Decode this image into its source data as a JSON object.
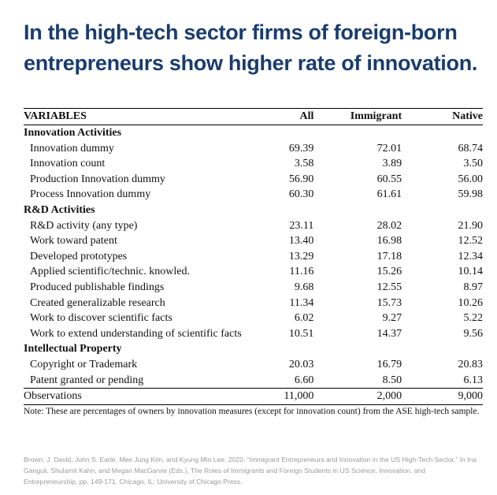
{
  "title": {
    "line1": "In the high-tech sector firms of foreign-born",
    "line2": "entrepreneurs show higher rate of innovation."
  },
  "table": {
    "headers": {
      "variables": "VARIABLES",
      "all": "All",
      "immigrant": "Immigrant",
      "native": "Native"
    },
    "sections": [
      {
        "label": "Innovation Activities",
        "rows": [
          {
            "label": "Innovation dummy",
            "all": "69.39",
            "immigrant": "72.01",
            "native": "68.74"
          },
          {
            "label": "Innovation count",
            "all": "3.58",
            "immigrant": "3.89",
            "native": "3.50"
          },
          {
            "label": "Production Innovation dummy",
            "all": "56.90",
            "immigrant": "60.55",
            "native": "56.00"
          },
          {
            "label": "Process Innovation dummy",
            "all": "60.30",
            "immigrant": "61.61",
            "native": "59.98"
          }
        ]
      },
      {
        "label": "R&D Activities",
        "rows": [
          {
            "label": "R&D activity (any type)",
            "all": "23.11",
            "immigrant": "28.02",
            "native": "21.90"
          },
          {
            "label": "Work toward patent",
            "all": "13.40",
            "immigrant": "16.98",
            "native": "12.52"
          },
          {
            "label": "Developed prototypes",
            "all": "13.29",
            "immigrant": "17.18",
            "native": "12.34"
          },
          {
            "label": "Applied scientific/technic. knowled.",
            "all": "11.16",
            "immigrant": "15.26",
            "native": "10.14"
          },
          {
            "label": "Produced publishable findings",
            "all": "9.68",
            "immigrant": "12.55",
            "native": "8.97"
          },
          {
            "label": "Created generalizable research",
            "all": "11.34",
            "immigrant": "15.73",
            "native": "10.26"
          },
          {
            "label": "Work to discover scientific facts",
            "all": "6.02",
            "immigrant": "9.27",
            "native": "5.22"
          },
          {
            "label": "Work to extend understanding of scientific facts",
            "all": "10.51",
            "immigrant": "14.37",
            "native": "9.56"
          }
        ]
      },
      {
        "label": "Intellectual Property",
        "rows": [
          {
            "label": "Copyright or Trademark",
            "all": "20.03",
            "immigrant": "16.79",
            "native": "20.83"
          },
          {
            "label": "Patent granted or pending",
            "all": "6.60",
            "immigrant": "8.50",
            "native": "6.13"
          }
        ]
      }
    ],
    "observations": {
      "label": "Observations",
      "all": "11,000",
      "immigrant": "2,000",
      "native": "9,000"
    }
  },
  "note": "Note: These are percentages of owners by innovation measures (except for innovation count) from the ASE high-tech sample.",
  "citation": "Brown, J. David, John S. Earle, Mee Jung Kim, and Kyung Min Lee. 2020. “Immigrant Entrepreneurs and Innovation in the US High-Tech Sector.” In Ina Ganguli, Shulamit Kahn, and Megan MacGarvie (Eds.), The Roles of Immigrants and Foreign Students in US Science, Innovation, and Entrepreneurship, pp. 149-171. Chicago, IL: University of Chicago Press."
}
